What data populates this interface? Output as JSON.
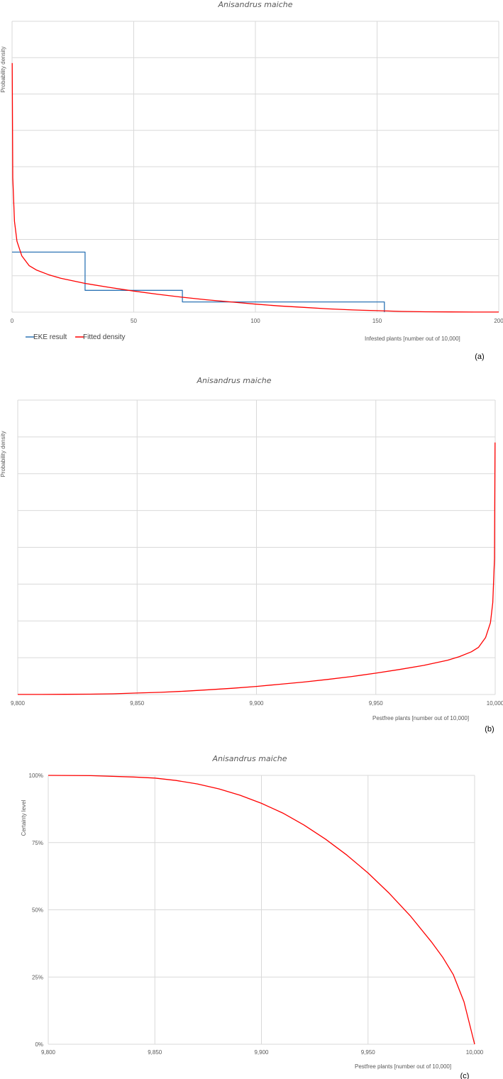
{
  "chart_data": [
    {
      "type": "line",
      "panel_label": "(a)",
      "title": "Anisandrus maiche",
      "xlabel": "Infested plants [number out of 10,000]",
      "ylabel": "Probability density",
      "xlim": [
        0,
        200
      ],
      "x_ticks": [
        "0",
        "50",
        "100",
        "150",
        "200"
      ],
      "grid": true,
      "legend": "bottom-left",
      "series": [
        {
          "name": "EKE result",
          "color": "#2e75b6",
          "kind": "step",
          "x": [
            0,
            30,
            30,
            70,
            70,
            153,
            153
          ],
          "y": [
            0.0165,
            0.0165,
            0.006,
            0.006,
            0.0028,
            0.0028,
            0
          ]
        },
        {
          "name": "Fitted density",
          "color": "#ff0000",
          "kind": "curve",
          "x": [
            0.05,
            0.3,
            1,
            2,
            4,
            7,
            10,
            15,
            20,
            30,
            40,
            50,
            60,
            70,
            80,
            90,
            100,
            110,
            120,
            130,
            140,
            150,
            160,
            170,
            180,
            190,
            200
          ],
          "y": [
            0.0685,
            0.037,
            0.025,
            0.0195,
            0.0155,
            0.0128,
            0.0116,
            0.0103,
            0.0093,
            0.0079,
            0.0068,
            0.0058,
            0.0049,
            0.0041,
            0.0034,
            0.0028,
            0.0022,
            0.0017,
            0.0013,
            0.0009,
            0.0006,
            0.0004,
            0.0002,
            0.0001,
            5e-05,
            2e-05,
            1e-05
          ]
        }
      ],
      "ylim": [
        0,
        0.08
      ]
    },
    {
      "type": "line",
      "panel_label": "(b)",
      "title": "Anisandrus maiche",
      "xlabel": "Pestfree plants [number out of 10,000]",
      "ylabel": "Probability density",
      "xlim": [
        9800,
        10000
      ],
      "x_ticks": [
        "9,800",
        "9,850",
        "9,900",
        "9,950",
        "10,000"
      ],
      "grid": true,
      "series": [
        {
          "name": "",
          "color": "#ff0000",
          "kind": "curve",
          "x": [
            9800,
            9810,
            9820,
            9830,
            9840,
            9850,
            9860,
            9870,
            9880,
            9890,
            9900,
            9910,
            9920,
            9930,
            9940,
            9950,
            9960,
            9970,
            9980,
            9985,
            9990,
            9993,
            9996,
            9998,
            9999,
            9999.7,
            9999.95
          ],
          "y": [
            1e-05,
            2e-05,
            5e-05,
            0.0001,
            0.0002,
            0.0004,
            0.0006,
            0.0009,
            0.0013,
            0.0017,
            0.0022,
            0.0028,
            0.0034,
            0.0041,
            0.0049,
            0.0058,
            0.0068,
            0.0079,
            0.0093,
            0.0103,
            0.0116,
            0.0128,
            0.0155,
            0.0195,
            0.025,
            0.037,
            0.0685
          ]
        }
      ],
      "ylim": [
        0,
        0.08
      ]
    },
    {
      "type": "line",
      "panel_label": "(c)",
      "title": "Anisandrus maiche",
      "xlabel": "Pestfree plants [number out of 10,000]",
      "ylabel": "Certainty level",
      "xlim": [
        9800,
        10000
      ],
      "ylim": [
        0,
        100
      ],
      "x_ticks": [
        "9,800",
        "9,850",
        "9,900",
        "9,950",
        "10,000"
      ],
      "y_ticks": [
        "0%",
        "25%",
        "50%",
        "75%",
        "100%"
      ],
      "grid": true,
      "series": [
        {
          "name": "",
          "color": "#ff0000",
          "kind": "curve",
          "x": [
            9800,
            9820,
            9840,
            9850,
            9860,
            9870,
            9880,
            9890,
            9900,
            9910,
            9920,
            9930,
            9940,
            9950,
            9960,
            9970,
            9980,
            9985,
            9990,
            9995,
            10000
          ],
          "y": [
            100,
            99.9,
            99.4,
            99.0,
            98.1,
            96.8,
            95.0,
            92.6,
            89.6,
            86.0,
            81.5,
            76.3,
            70.4,
            63.7,
            56.1,
            47.6,
            37.8,
            32.4,
            25.9,
            15.8,
            0
          ]
        }
      ]
    }
  ]
}
